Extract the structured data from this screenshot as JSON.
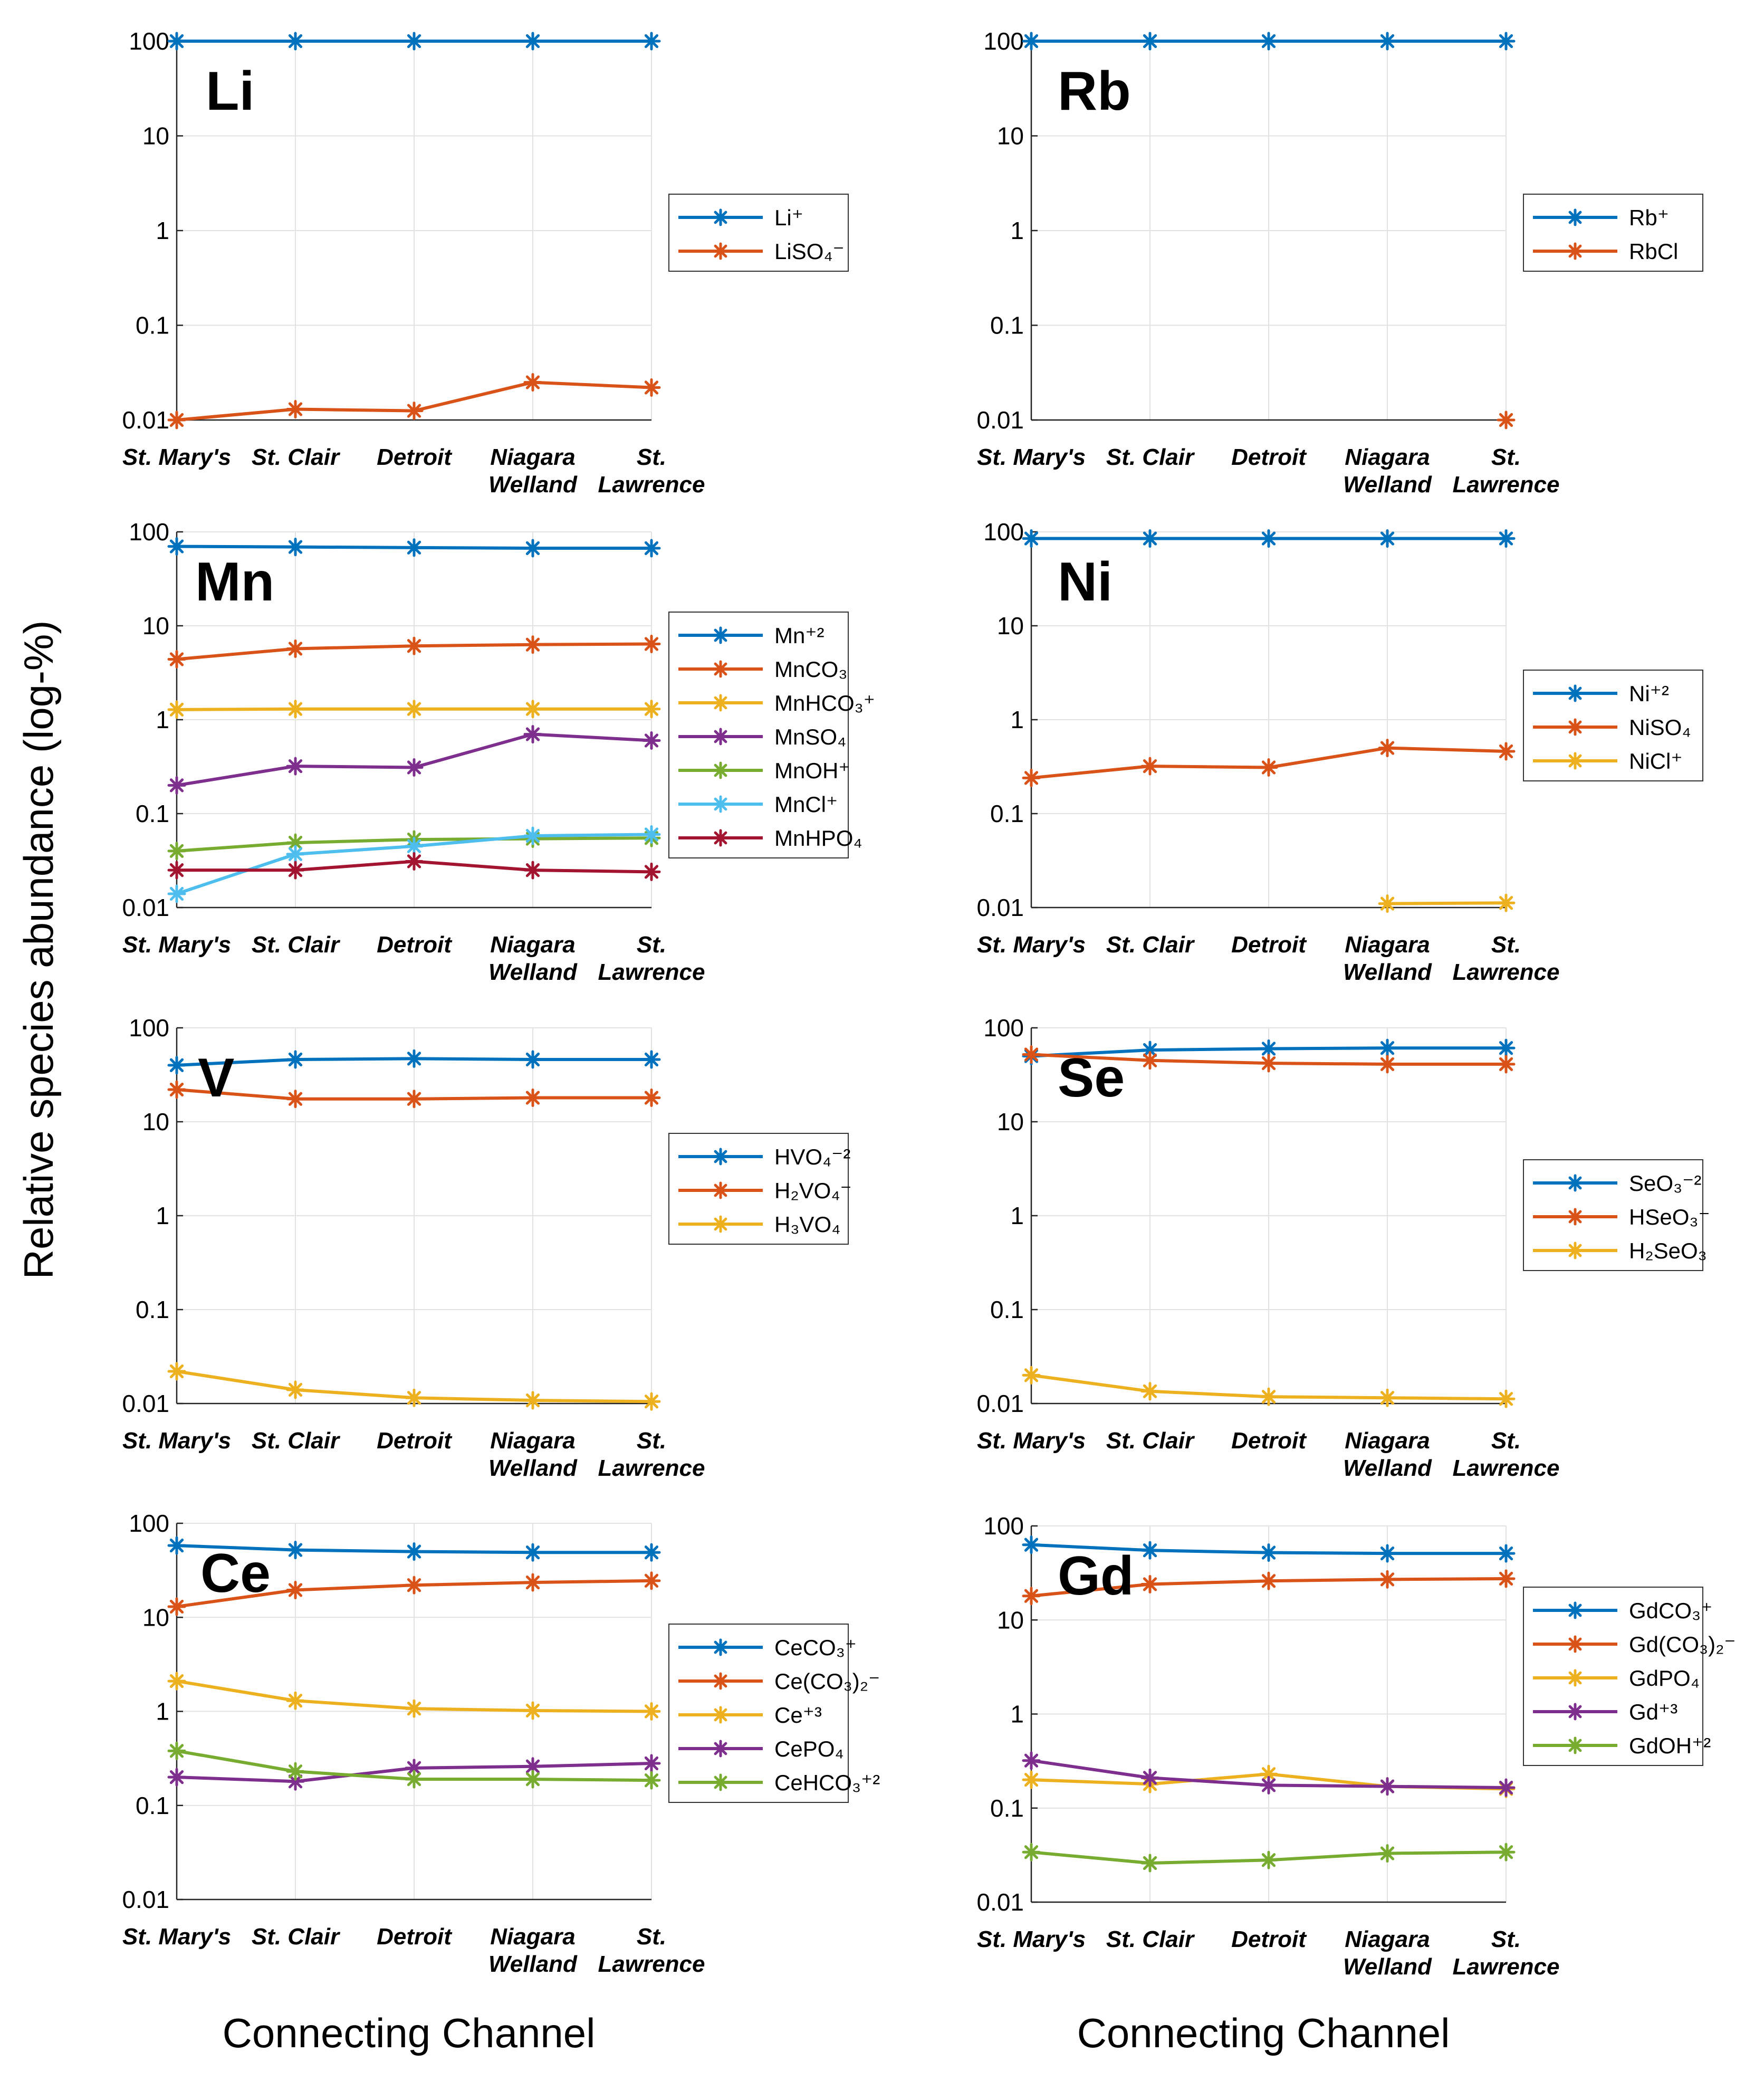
{
  "figure": {
    "y_axis_label": "Relative species abundance (log-%)",
    "x_axis_label_left": "Connecting Channel",
    "x_axis_label_right": "Connecting Channel"
  },
  "chart_data": [
    {
      "type": "line",
      "title": "Li",
      "scale": "log",
      "ylim": [
        0.01,
        100
      ],
      "yticks": [
        "0.01",
        "0.1",
        "1",
        "10",
        "100"
      ],
      "categories": [
        [
          "St. Mary's"
        ],
        [
          "St. Clair"
        ],
        [
          "Detroit"
        ],
        [
          "Niagara",
          "Welland"
        ],
        [
          "St.",
          "Lawrence"
        ]
      ],
      "series": [
        {
          "name": "Li⁺",
          "color": "#0072BD",
          "values": [
            100,
            100,
            100,
            100,
            100
          ]
        },
        {
          "name": "LiSO₄⁻",
          "color": "#D95319",
          "values": [
            0.01,
            0.013,
            0.0125,
            0.025,
            0.022
          ]
        }
      ]
    },
    {
      "type": "line",
      "title": "Rb",
      "scale": "log",
      "ylim": [
        0.01,
        100
      ],
      "yticks": [
        "0.01",
        "0.1",
        "1",
        "10",
        "100"
      ],
      "categories": [
        [
          "St. Mary's"
        ],
        [
          "St. Clair"
        ],
        [
          "Detroit"
        ],
        [
          "Niagara",
          "Welland"
        ],
        [
          "St.",
          "Lawrence"
        ]
      ],
      "series": [
        {
          "name": "Rb⁺",
          "color": "#0072BD",
          "values": [
            100,
            100,
            100,
            100,
            100
          ]
        },
        {
          "name": "RbCl",
          "color": "#D95319",
          "values": [
            null,
            null,
            null,
            null,
            0.01
          ]
        }
      ]
    },
    {
      "type": "line",
      "title": "Mn",
      "scale": "log",
      "ylim": [
        0.01,
        100
      ],
      "yticks": [
        "0.01",
        "0.1",
        "1",
        "10",
        "100"
      ],
      "categories": [
        [
          "St. Mary's"
        ],
        [
          "St. Clair"
        ],
        [
          "Detroit"
        ],
        [
          "Niagara",
          "Welland"
        ],
        [
          "St.",
          "Lawrence"
        ]
      ],
      "series": [
        {
          "name": "Mn⁺²",
          "color": "#0072BD",
          "values": [
            70,
            69,
            68,
            67,
            67
          ]
        },
        {
          "name": "MnCO₃",
          "color": "#D95319",
          "values": [
            4.4,
            5.7,
            6.1,
            6.3,
            6.4
          ]
        },
        {
          "name": "MnHCO₃⁺",
          "color": "#EDB120",
          "values": [
            1.28,
            1.3,
            1.3,
            1.3,
            1.3
          ]
        },
        {
          "name": "MnSO₄",
          "color": "#7E2F8E",
          "values": [
            0.2,
            0.32,
            0.31,
            0.7,
            0.6
          ]
        },
        {
          "name": "MnOH⁺",
          "color": "#77AC30",
          "values": [
            0.04,
            0.049,
            0.053,
            0.054,
            0.055
          ]
        },
        {
          "name": "MnCl⁺",
          "color": "#4DBEEE",
          "values": [
            0.014,
            0.037,
            0.045,
            0.058,
            0.06
          ]
        },
        {
          "name": "MnHPO₄",
          "color": "#A2142F",
          "values": [
            0.025,
            0.025,
            0.031,
            0.025,
            0.024
          ]
        }
      ]
    },
    {
      "type": "line",
      "title": "Ni",
      "scale": "log",
      "ylim": [
        0.01,
        100
      ],
      "yticks": [
        "0.01",
        "0.1",
        "1",
        "10",
        "100"
      ],
      "categories": [
        [
          "St. Mary's"
        ],
        [
          "St. Clair"
        ],
        [
          "Detroit"
        ],
        [
          "Niagara",
          "Welland"
        ],
        [
          "St.",
          "Lawrence"
        ]
      ],
      "series": [
        {
          "name": "Ni⁺²",
          "color": "#0072BD",
          "values": [
            85,
            85,
            85,
            85,
            85
          ]
        },
        {
          "name": "NiSO₄",
          "color": "#D95319",
          "values": [
            0.24,
            0.32,
            0.31,
            0.5,
            0.46
          ]
        },
        {
          "name": "NiCl⁺",
          "color": "#EDB120",
          "values": [
            null,
            null,
            null,
            0.011,
            0.0112
          ]
        }
      ]
    },
    {
      "type": "line",
      "title": "V",
      "scale": "log",
      "ylim": [
        0.01,
        100
      ],
      "yticks": [
        "0.01",
        "0.1",
        "1",
        "10",
        "100"
      ],
      "categories": [
        [
          "St. Mary's"
        ],
        [
          "St. Clair"
        ],
        [
          "Detroit"
        ],
        [
          "Niagara",
          "Welland"
        ],
        [
          "St.",
          "Lawrence"
        ]
      ],
      "series": [
        {
          "name": "HVO₄⁻²",
          "color": "#0072BD",
          "values": [
            40,
            46,
            47,
            46,
            46
          ]
        },
        {
          "name": "H₂VO₄⁻",
          "color": "#D95319",
          "values": [
            22,
            17.5,
            17.5,
            18,
            18
          ]
        },
        {
          "name": "H₃VO₄",
          "color": "#EDB120",
          "values": [
            0.022,
            0.014,
            0.0115,
            0.0108,
            0.0105
          ]
        }
      ]
    },
    {
      "type": "line",
      "title": "Se",
      "scale": "log",
      "ylim": [
        0.01,
        100
      ],
      "yticks": [
        "0.01",
        "0.1",
        "1",
        "10",
        "100"
      ],
      "categories": [
        [
          "St. Mary's"
        ],
        [
          "St. Clair"
        ],
        [
          "Detroit"
        ],
        [
          "Niagara",
          "Welland"
        ],
        [
          "St.",
          "Lawrence"
        ]
      ],
      "series": [
        {
          "name": "SeO₃⁻²",
          "color": "#0072BD",
          "values": [
            50,
            58,
            60,
            61,
            61
          ]
        },
        {
          "name": "HSeO₃⁻",
          "color": "#D95319",
          "values": [
            52,
            45,
            42,
            41,
            41
          ]
        },
        {
          "name": "H₂SeO₃",
          "color": "#EDB120",
          "values": [
            0.02,
            0.0135,
            0.0118,
            0.0115,
            0.0112
          ]
        }
      ]
    },
    {
      "type": "line",
      "title": "Ce",
      "scale": "log",
      "ylim": [
        0.01,
        100
      ],
      "yticks": [
        "0.01",
        "0.1",
        "1",
        "10",
        "100"
      ],
      "categories": [
        [
          "St. Mary's"
        ],
        [
          "St. Clair"
        ],
        [
          "Detroit"
        ],
        [
          "Niagara",
          "Welland"
        ],
        [
          "St.",
          "Lawrence"
        ]
      ],
      "series": [
        {
          "name": "CeCO₃⁺",
          "color": "#0072BD",
          "values": [
            58,
            52,
            50,
            49,
            49
          ]
        },
        {
          "name": "Ce(CO₃)₂⁻",
          "color": "#D95319",
          "values": [
            13,
            19.5,
            22,
            23.5,
            24.5
          ]
        },
        {
          "name": "Ce⁺³",
          "color": "#EDB120",
          "values": [
            2.1,
            1.3,
            1.07,
            1.02,
            1.0
          ]
        },
        {
          "name": "CePO₄",
          "color": "#7E2F8E",
          "values": [
            0.2,
            0.18,
            0.25,
            0.26,
            0.28
          ]
        },
        {
          "name": "CeHCO₃⁺²",
          "color": "#77AC30",
          "values": [
            0.38,
            0.23,
            0.19,
            0.19,
            0.185
          ]
        }
      ]
    },
    {
      "type": "line",
      "title": "Gd",
      "scale": "log",
      "ylim": [
        0.01,
        100
      ],
      "yticks": [
        "0.01",
        "0.1",
        "1",
        "10",
        "100"
      ],
      "categories": [
        [
          "St. Mary's"
        ],
        [
          "St. Clair"
        ],
        [
          "Detroit"
        ],
        [
          "Niagara",
          "Welland"
        ],
        [
          "St.",
          "Lawrence"
        ]
      ],
      "series": [
        {
          "name": "GdCO₃⁺",
          "color": "#0072BD",
          "values": [
            63,
            55,
            52,
            51,
            51
          ]
        },
        {
          "name": "Gd(CO₃)₂⁻",
          "color": "#D95319",
          "values": [
            18,
            24,
            26,
            27,
            27.5
          ]
        },
        {
          "name": "GdPO₄",
          "color": "#EDB120",
          "values": [
            0.2,
            0.18,
            0.23,
            0.17,
            0.16
          ]
        },
        {
          "name": "Gd⁺³",
          "color": "#7E2F8E",
          "values": [
            0.32,
            0.21,
            0.175,
            0.17,
            0.165
          ]
        },
        {
          "name": "GdOH⁺²",
          "color": "#77AC30",
          "values": [
            0.034,
            0.026,
            0.028,
            0.033,
            0.034
          ]
        }
      ]
    }
  ]
}
